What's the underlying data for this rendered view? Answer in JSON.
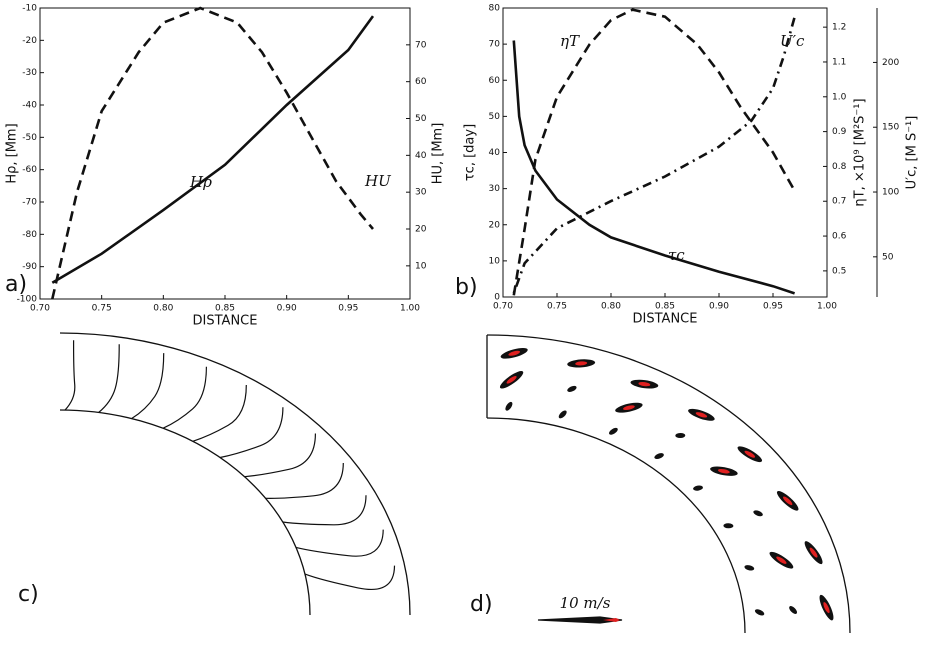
{
  "chart_data": [
    {
      "type": "line",
      "panel_label": "a)",
      "xlabel": "DISTANCE",
      "ylabel": "Hρ, [Mm]",
      "y2label": "HU, [Mm]",
      "xlim": [
        0.7,
        1.0
      ],
      "xticks": [
        {
          "value": 0.7,
          "label": "0.70"
        },
        0.75,
        {
          "value": 0.8,
          "label": "0.80"
        },
        0.85,
        {
          "value": 0.9,
          "label": "0.90"
        },
        0.95,
        {
          "value": 1.0,
          "label": "1.00"
        }
      ],
      "ylim": [
        -100,
        -10
      ],
      "yticks": [
        -100,
        -90,
        -80,
        -70,
        -60,
        -50,
        -40,
        -30,
        -20,
        -10
      ],
      "y2lim": [
        1,
        80
      ],
      "y2ticks": [
        10,
        20,
        30,
        40,
        50,
        60,
        70
      ],
      "series": [
        {
          "name": "Hρ",
          "color": "#111111",
          "linestyle": "solid",
          "x": [
            0.71,
            0.75,
            0.8,
            0.85,
            0.9,
            0.95,
            0.97
          ],
          "values": [
            -95,
            -86,
            -72.5,
            -58.5,
            -40,
            -23,
            -12.5
          ]
        },
        {
          "name": "HU",
          "color": "#111111",
          "linestyle": "dashed",
          "axis": "y2",
          "x": [
            0.71,
            0.73,
            0.75,
            0.78,
            0.8,
            0.83,
            0.86,
            0.88,
            0.9,
            0.92,
            0.94,
            0.96,
            0.97
          ],
          "values": [
            1,
            30,
            52,
            68,
            76,
            80,
            76,
            68,
            57,
            45,
            33,
            24,
            20
          ]
        }
      ]
    },
    {
      "type": "line",
      "panel_label": "b)",
      "xlabel": "DISTANCE",
      "ylabel": "τc, [day]",
      "y2label": "ηT, ×10⁹ [M²S⁻¹]",
      "y3label": "U′c, [M S⁻¹]",
      "xlim": [
        0.7,
        1.0
      ],
      "xticks": [
        {
          "value": 0.7,
          "label": "0.70"
        },
        0.75,
        {
          "value": 0.8,
          "label": "0.80"
        },
        0.85,
        {
          "value": 0.9,
          "label": "0.90"
        },
        0.95,
        {
          "value": 1.0,
          "label": "1.00"
        }
      ],
      "ylim": [
        0,
        80
      ],
      "yticks": [
        0,
        10,
        20,
        30,
        40,
        50,
        60,
        70,
        80
      ],
      "y2lim": [
        0.425,
        1.255
      ],
      "y2ticks": [
        0.5,
        0.6,
        0.7,
        0.8,
        0.9,
        {
          "value": 1,
          "label": "1.0"
        },
        1.1,
        1.2
      ],
      "y3lim": [
        19,
        242
      ],
      "y3ticks": [
        50,
        100,
        150,
        200
      ],
      "series": [
        {
          "name": "τc",
          "color": "#111111",
          "linestyle": "solid",
          "x": [
            0.71,
            0.715,
            0.72,
            0.73,
            0.75,
            0.78,
            0.8,
            0.85,
            0.9,
            0.95,
            0.97
          ],
          "values": [
            71,
            50,
            42,
            35,
            27,
            20,
            16.5,
            11.5,
            7,
            3,
            1
          ]
        },
        {
          "name": "ηT",
          "color": "#111111",
          "linestyle": "dashed",
          "axis": "y2",
          "x": [
            0.71,
            0.72,
            0.73,
            0.75,
            0.78,
            0.8,
            0.82,
            0.85,
            0.88,
            0.9,
            0.92,
            0.95,
            0.97
          ],
          "values": [
            0.43,
            0.62,
            0.82,
            1.0,
            1.15,
            1.22,
            1.25,
            1.23,
            1.15,
            1.07,
            0.97,
            0.84,
            0.73
          ]
        },
        {
          "name": "U′c",
          "color": "#111111",
          "linestyle": "dashdot",
          "axis": "y3",
          "x": [
            0.71,
            0.72,
            0.75,
            0.8,
            0.85,
            0.9,
            0.93,
            0.95,
            0.96,
            0.97
          ],
          "values": [
            22,
            45,
            72,
            93,
            112,
            135,
            155,
            180,
            205,
            235
          ]
        }
      ]
    }
  ],
  "panels": [
    {
      "label": "c)"
    },
    {
      "label": "d)",
      "scale_label": "10 m/s"
    }
  ]
}
